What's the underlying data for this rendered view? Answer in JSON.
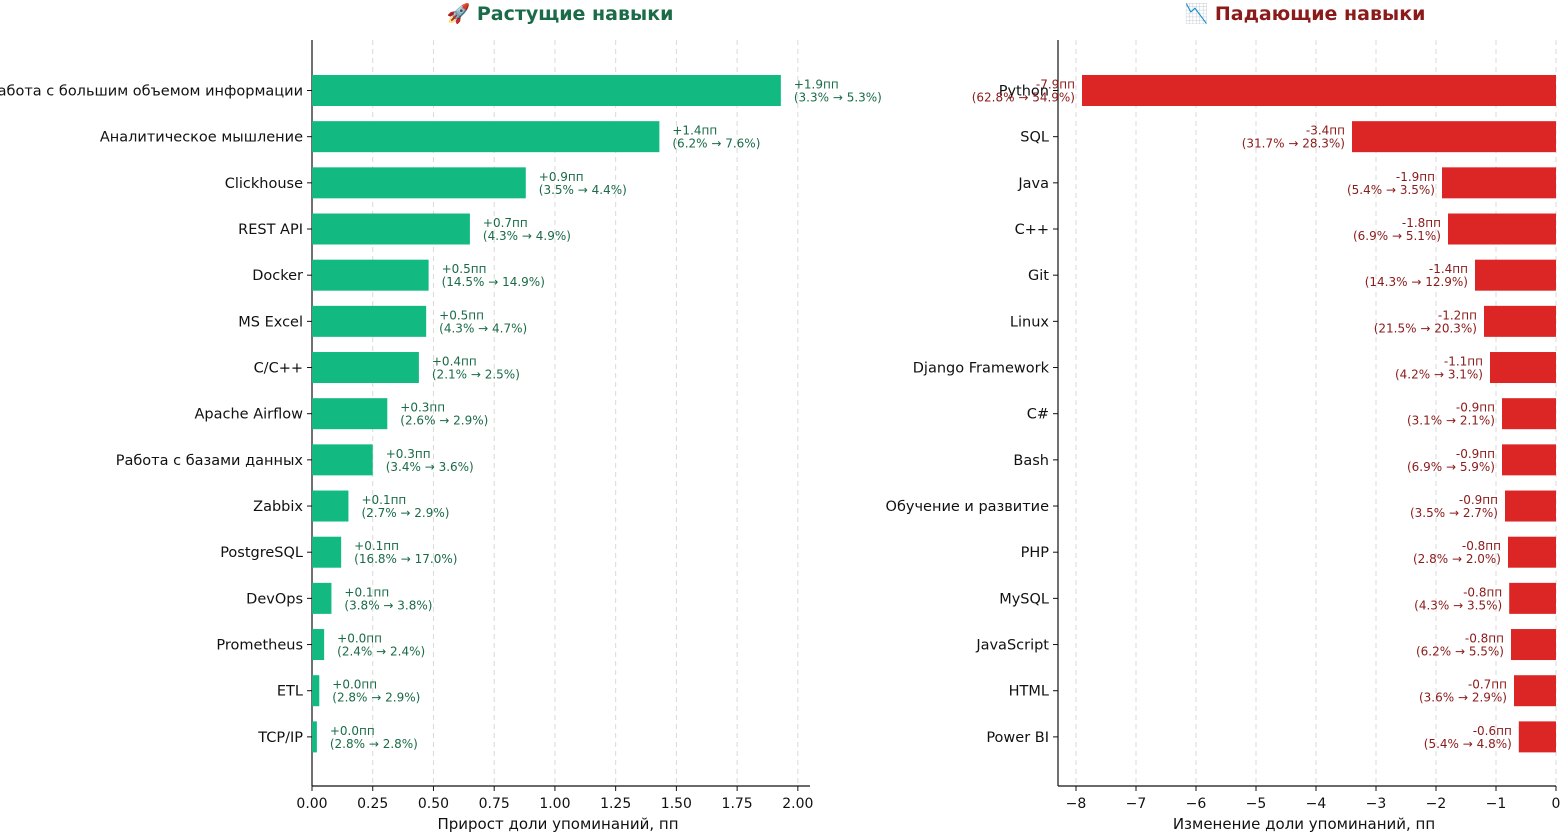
{
  "colors": {
    "grow_bar": "#12b981",
    "grow_text": "#1a6b47",
    "grow_title": "#1b6b48",
    "fall_bar": "#dc2626",
    "fall_text": "#8b1a1a",
    "fall_title": "#8b1a1a"
  },
  "chart_data": [
    {
      "type": "bar",
      "orientation": "horizontal",
      "title": "🚀 Растущие навыки",
      "xlabel": "Прирост доли упоминаний, пп",
      "xlim": [
        0,
        2.05
      ],
      "xticks": [
        "0.00",
        "0.25",
        "0.50",
        "0.75",
        "1.00",
        "1.25",
        "1.50",
        "1.75",
        "2.00"
      ],
      "grid": "vertical-dashed",
      "categories": [
        "Работа с большим объемом информации",
        "Аналитическое мышление",
        "Clickhouse",
        "REST API",
        "Docker",
        "MS Excel",
        "C/C++",
        "Apache Airflow",
        "Работа с базами данных",
        "Zabbix",
        "PostgreSQL",
        "DevOps",
        "Prometheus",
        "ETL",
        "TCP/IP"
      ],
      "values": [
        1.93,
        1.43,
        0.88,
        0.65,
        0.48,
        0.47,
        0.44,
        0.31,
        0.25,
        0.15,
        0.12,
        0.08,
        0.05,
        0.03,
        0.02
      ],
      "labels": [
        [
          "+1.9пп",
          "(3.3% → 5.3%)"
        ],
        [
          "+1.4пп",
          "(6.2% → 7.6%)"
        ],
        [
          "+0.9пп",
          "(3.5% → 4.4%)"
        ],
        [
          "+0.7пп",
          "(4.3% → 4.9%)"
        ],
        [
          "+0.5пп",
          "(14.5% → 14.9%)"
        ],
        [
          "+0.5пп",
          "(4.3% → 4.7%)"
        ],
        [
          "+0.4пп",
          "(2.1% → 2.5%)"
        ],
        [
          "+0.3пп",
          "(2.6% → 2.9%)"
        ],
        [
          "+0.3пп",
          "(3.4% → 3.6%)"
        ],
        [
          "+0.1пп",
          "(2.7% → 2.9%)"
        ],
        [
          "+0.1пп",
          "(16.8% → 17.0%)"
        ],
        [
          "+0.1пп",
          "(3.8% → 3.8%)"
        ],
        [
          "+0.0пп",
          "(2.4% → 2.4%)"
        ],
        [
          "+0.0пп",
          "(2.8% → 2.9%)"
        ],
        [
          "+0.0пп",
          "(2.8% → 2.8%)"
        ]
      ]
    },
    {
      "type": "bar",
      "orientation": "horizontal",
      "title": "📉 Падающие навыки",
      "xlabel": "Изменение доли упоминаний, пп",
      "xlim": [
        -8.3,
        0
      ],
      "xticks": [
        "−8",
        "−7",
        "−6",
        "−5",
        "−4",
        "−3",
        "−2",
        "−1",
        "0"
      ],
      "grid": "vertical-dashed",
      "categories": [
        "Python",
        "SQL",
        "Java",
        "C++",
        "Git",
        "Linux",
        "Django Framework",
        "C#",
        "Bash",
        "Обучение и развитие",
        "PHP",
        "MySQL",
        "JavaScript",
        "HTML",
        "Power BI"
      ],
      "values": [
        -7.9,
        -3.4,
        -1.9,
        -1.8,
        -1.35,
        -1.2,
        -1.1,
        -0.9,
        -0.9,
        -0.85,
        -0.8,
        -0.78,
        -0.75,
        -0.7,
        -0.62
      ],
      "labels": [
        [
          "-7.9пп",
          "(62.8% → 54.9%)"
        ],
        [
          "-3.4пп",
          "(31.7% → 28.3%)"
        ],
        [
          "-1.9пп",
          "(5.4% → 3.5%)"
        ],
        [
          "-1.8пп",
          "(6.9% → 5.1%)"
        ],
        [
          "-1.4пп",
          "(14.3% → 12.9%)"
        ],
        [
          "-1.2пп",
          "(21.5% → 20.3%)"
        ],
        [
          "-1.1пп",
          "(4.2% → 3.1%)"
        ],
        [
          "-0.9пп",
          "(3.1% → 2.1%)"
        ],
        [
          "-0.9пп",
          "(6.9% → 5.9%)"
        ],
        [
          "-0.9пп",
          "(3.5% → 2.7%)"
        ],
        [
          "-0.8пп",
          "(2.8% → 2.0%)"
        ],
        [
          "-0.8пп",
          "(4.3% → 3.5%)"
        ],
        [
          "-0.8пп",
          "(6.2% → 5.5%)"
        ],
        [
          "-0.7пп",
          "(3.6% → 2.9%)"
        ],
        [
          "-0.6пп",
          "(5.4% → 4.8%)"
        ]
      ]
    }
  ]
}
